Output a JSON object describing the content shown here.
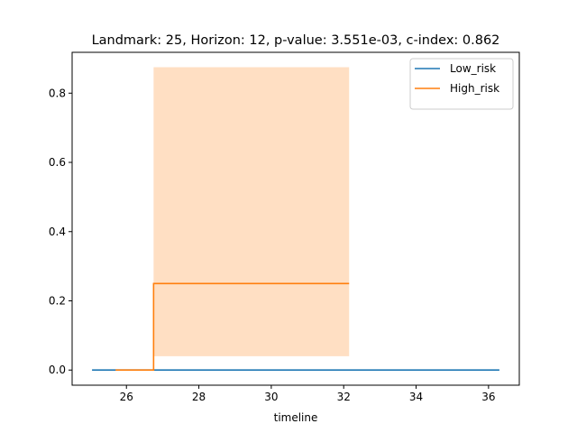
{
  "chart_data": {
    "type": "line",
    "step": true,
    "title": "Landmark: 25, Horizon: 12, p-value: 3.551e-03, c-index: 0.862",
    "xlabel": "timeline",
    "ylabel": "",
    "xlim": [
      24.5,
      36.85
    ],
    "ylim": [
      -0.0437,
      0.918
    ],
    "xticks": [
      26,
      28,
      30,
      32,
      34,
      36
    ],
    "yticks": [
      0.0,
      0.2,
      0.4,
      0.6,
      0.8
    ],
    "xtick_labels": [
      "26",
      "28",
      "30",
      "32",
      "34",
      "36"
    ],
    "ytick_labels": [
      "0.0",
      "0.2",
      "0.4",
      "0.6",
      "0.8"
    ],
    "grid": false,
    "legend": "top-right",
    "series": [
      {
        "name": "Low_risk",
        "color": "#1f77b4",
        "x": [
          25.05,
          36.3
        ],
        "y": [
          0.0,
          0.0
        ],
        "ci": null
      },
      {
        "name": "High_risk",
        "color": "#ff7f0e",
        "x": [
          25.7,
          26.75,
          32.15
        ],
        "y": [
          0.0,
          0.25,
          0.25
        ],
        "ci": {
          "x": [
            26.75,
            32.15
          ],
          "lower": [
            0.04,
            0.04
          ],
          "upper": [
            0.875,
            0.875
          ]
        }
      }
    ]
  }
}
